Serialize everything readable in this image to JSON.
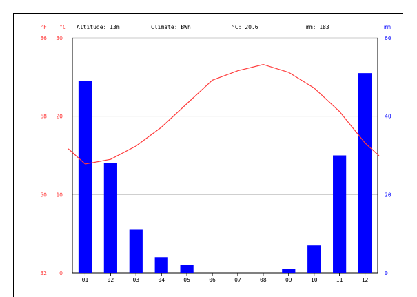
{
  "colors": {
    "temperature": "#ff3b3b",
    "precipitation": "#0000ff",
    "grid": "#c8c8c8",
    "text": "#000000"
  },
  "header": {
    "unit_f": "°F",
    "unit_c": "°C",
    "altitude": "Altitude: 13m",
    "climate": "Climate: BWh",
    "avg_temp": "°C: 20.6",
    "precip_total": "mm: 183",
    "unit_mm": "mm"
  },
  "chart_data": {
    "type": "bar",
    "categories": [
      "01",
      "02",
      "03",
      "04",
      "05",
      "06",
      "07",
      "08",
      "09",
      "10",
      "11",
      "12"
    ],
    "series": [
      {
        "type": "bar",
        "axis": "right",
        "values": [
          49,
          28,
          11,
          4,
          2,
          0,
          0,
          0,
          1,
          7,
          30,
          51
        ]
      },
      {
        "type": "line",
        "axis": "left",
        "values": [
          13.9,
          14.5,
          16.2,
          18.6,
          21.6,
          24.6,
          25.8,
          26.6,
          25.6,
          23.6,
          20.6,
          16.6
        ]
      }
    ],
    "left_axis": {
      "ylim": [
        0,
        30
      ],
      "ticks": [
        "0",
        "10",
        "20",
        "30"
      ]
    },
    "fahrenheit_ticks": [
      "32",
      "50",
      "68",
      "86"
    ],
    "right_axis": {
      "ylim": [
        0,
        60
      ],
      "ticks": [
        "0",
        "20",
        "40",
        "60"
      ]
    },
    "grid": true
  }
}
